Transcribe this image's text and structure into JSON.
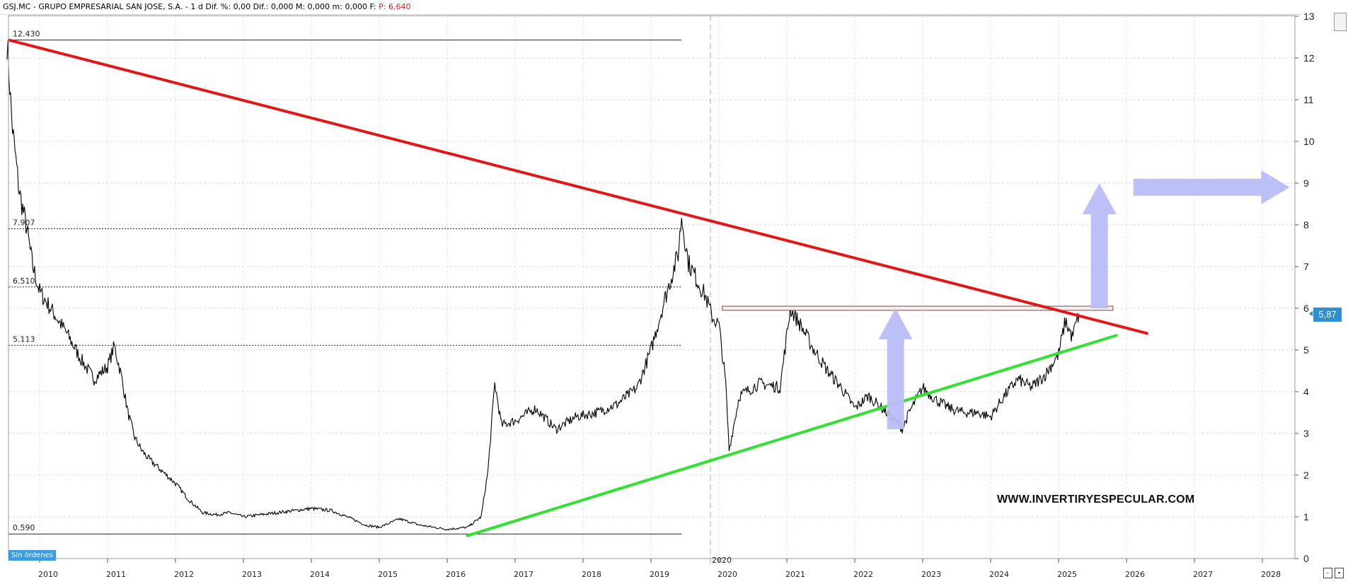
{
  "header": {
    "symbol": "GSJ.MC",
    "company": "GRUPO EMPRESARIAL SAN JOSE, S.A.",
    "timeframe": "1 d",
    "stats": "Dif. %: 0,00  Dif.: 0,000  M: 0,000  m: 0,000  F:",
    "last_price": "P: 6,640"
  },
  "price_badge": "5,87",
  "orders_badge": "Sin órdenes",
  "watermark": "WWW.INVERTIRYESPECULAR.COM",
  "colors": {
    "resistance_line": "#e01818",
    "support_line": "#33e033",
    "arrows": "#b9bdf5",
    "price_line": "#000000",
    "badge": "#2d8fd6"
  },
  "chart_data": {
    "type": "line",
    "title": "",
    "xlabel": "",
    "ylabel": "",
    "x_ticks": [
      "2010",
      "2011",
      "2012",
      "2013",
      "2014",
      "2015",
      "2016",
      "2017",
      "2018",
      "2019",
      "2020",
      "2021",
      "2022",
      "2023",
      "2024",
      "2025",
      "2026",
      "2027",
      "2028"
    ],
    "x_range": [
      2009.5,
      2028.6
    ],
    "y_ticks": [
      "0",
      "1",
      "2",
      "3",
      "4",
      "5",
      "6",
      "7",
      "8",
      "9",
      "10",
      "11",
      "12",
      "13"
    ],
    "ylim": [
      0,
      13
    ],
    "grid": true,
    "separator_label": "2020",
    "levels": [
      {
        "label": "12.430",
        "value": 12.43,
        "style": "solid"
      },
      {
        "label": "7.907",
        "value": 7.907,
        "style": "dotted"
      },
      {
        "label": "6.510",
        "value": 6.51,
        "style": "dotted"
      },
      {
        "label": "5.113",
        "value": 5.113,
        "style": "dotted"
      },
      {
        "label": "0.590",
        "value": 0.59,
        "style": "solid"
      }
    ],
    "series": [
      {
        "x": [
          2009.52,
          2009.6,
          2009.7,
          2009.8,
          2009.9,
          2010.0,
          2010.2,
          2010.4,
          2010.6,
          2010.8,
          2011.0,
          2011.1,
          2011.2,
          2011.3,
          2011.4,
          2011.5,
          2011.6,
          2011.8,
          2012.0,
          2012.2,
          2012.4,
          2012.6,
          2012.8,
          2013.0,
          2013.5,
          2014.0,
          2014.3,
          2014.6,
          2014.8,
          2015.0,
          2015.3,
          2015.6,
          2016.0,
          2016.3,
          2016.5,
          2016.6,
          2016.7,
          2016.8,
          2017.0,
          2017.3,
          2017.6,
          2017.9,
          2018.2,
          2018.5,
          2018.8,
          2019.0,
          2019.2,
          2019.4,
          2019.45,
          2019.55,
          2019.7,
          2019.8,
          2019.9,
          2020.0,
          2020.1,
          2020.15,
          2020.3,
          2020.6,
          2020.9,
          2021.05,
          2021.2,
          2021.4,
          2021.6,
          2021.8,
          2022.0,
          2022.2,
          2022.4,
          2022.6,
          2022.7,
          2022.8,
          2023.0,
          2023.2,
          2023.4,
          2023.6,
          2023.8,
          2024.0,
          2024.2,
          2024.4,
          2024.6,
          2024.8,
          2025.0,
          2025.1,
          2025.2,
          2025.3
        ],
        "y": [
          12.4,
          10.3,
          8.8,
          8.0,
          7.0,
          6.4,
          5.9,
          5.4,
          4.8,
          4.3,
          4.6,
          5.1,
          4.4,
          3.5,
          2.9,
          2.6,
          2.4,
          2.1,
          1.8,
          1.4,
          1.1,
          1.05,
          1.1,
          1.0,
          1.1,
          1.2,
          1.15,
          0.95,
          0.8,
          0.75,
          0.95,
          0.8,
          0.7,
          0.75,
          1.0,
          2.1,
          4.2,
          3.2,
          3.3,
          3.6,
          3.1,
          3.4,
          3.5,
          3.7,
          4.1,
          5.0,
          6.2,
          7.3,
          8.2,
          7.1,
          6.6,
          6.3,
          5.8,
          5.6,
          4.2,
          2.6,
          3.9,
          4.2,
          4.1,
          6.0,
          5.6,
          5.0,
          4.5,
          4.1,
          3.6,
          3.9,
          3.6,
          3.3,
          3.1,
          3.5,
          4.1,
          3.8,
          3.6,
          3.5,
          3.5,
          3.4,
          3.9,
          4.3,
          4.1,
          4.4,
          4.9,
          5.7,
          5.3,
          5.87
        ]
      }
    ],
    "trendlines": [
      {
        "name": "resistance",
        "x": [
          2009.55,
          2026.3
        ],
        "y": [
          12.43,
          5.4
        ]
      },
      {
        "name": "support",
        "x": [
          2016.3,
          2025.85
        ],
        "y": [
          0.55,
          5.35
        ]
      }
    ],
    "range_box": {
      "x": [
        2020.05,
        2025.8
      ],
      "y": [
        5.95,
        6.05
      ]
    },
    "annotations": [
      {
        "type": "arrow-up",
        "x": 2022.6,
        "y_from": 3.1,
        "y_to": 6.0
      },
      {
        "type": "arrow-up",
        "x": 2025.6,
        "y_from": 6.0,
        "y_to": 9.0
      },
      {
        "type": "arrow-right",
        "x_from": 2026.1,
        "x_to": 2028.4,
        "y": 8.9
      }
    ]
  }
}
